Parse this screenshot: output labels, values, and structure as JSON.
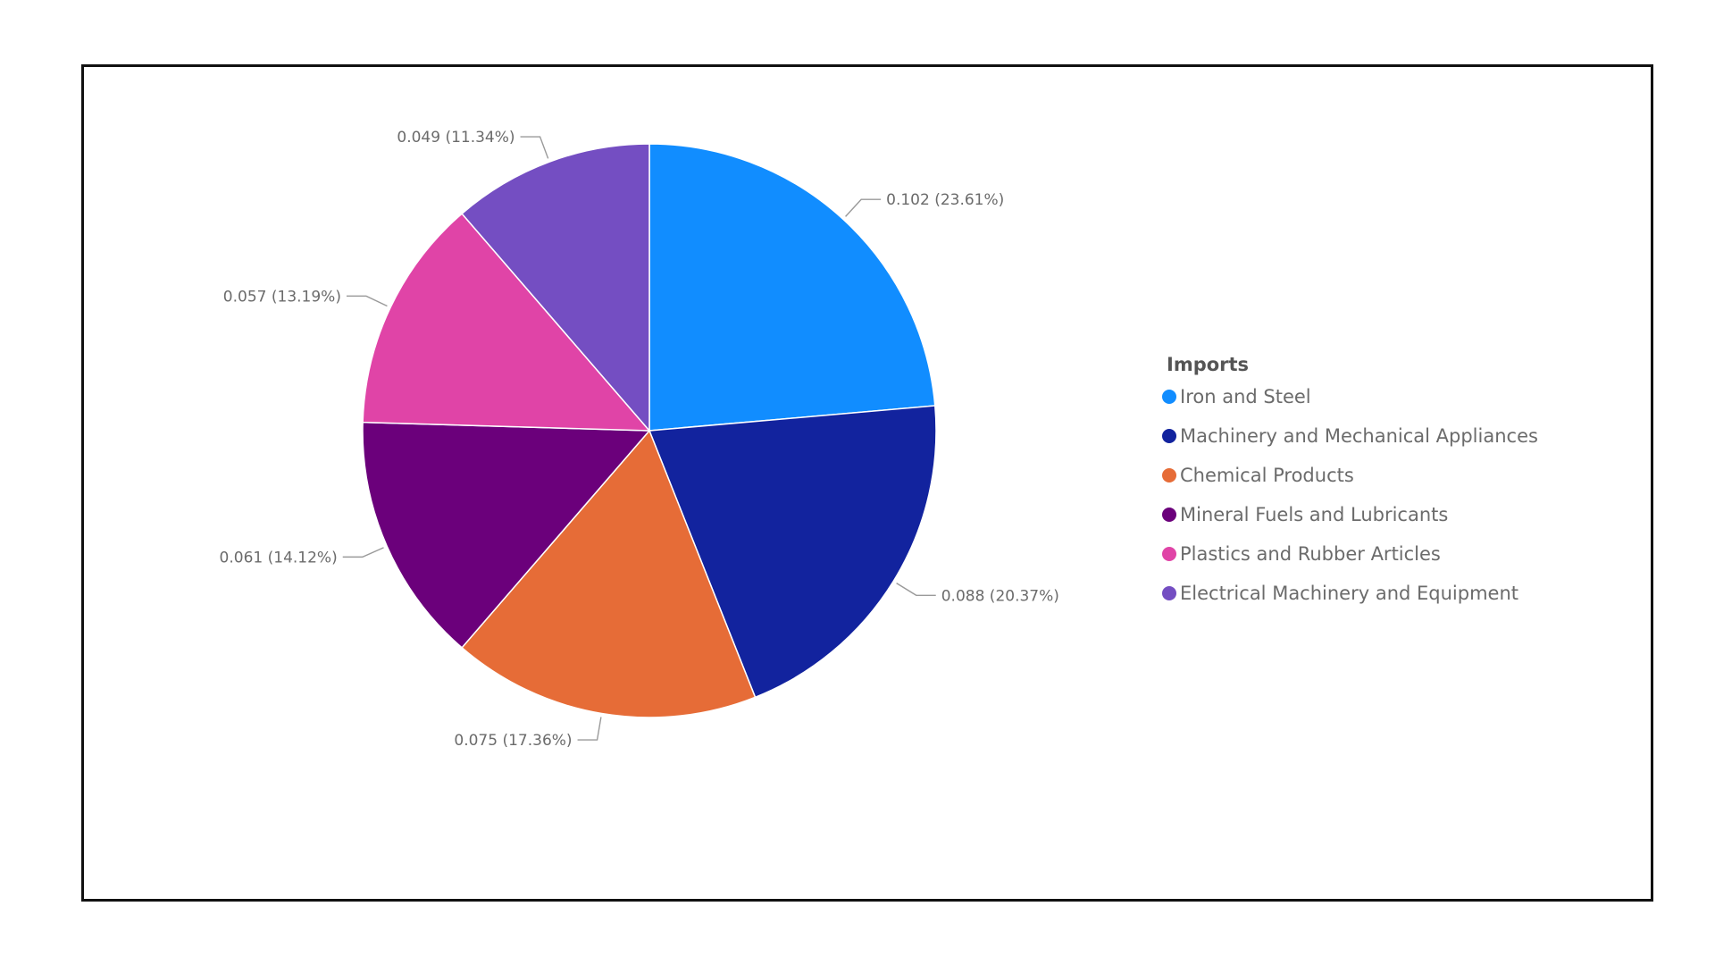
{
  "chart_data": {
    "type": "pie",
    "legend_title": "Imports",
    "legend_position": "right",
    "categories": [
      "Iron and Steel",
      "Machinery and Mechanical Appliances",
      "Chemical Products",
      "Mineral Fuels and Lubricants",
      "Plastics and Rubber Articles",
      "Electrical Machinery and Equipment"
    ],
    "values": [
      0.102,
      0.088,
      0.075,
      0.061,
      0.057,
      0.049
    ],
    "data_labels": [
      "0.102 (23.61%)",
      "0.088 (20.37%)",
      "0.075 (17.36%)",
      "0.061 (14.12%)",
      "0.057 (13.19%)",
      "0.049 (11.34%)"
    ],
    "colors": [
      "#118DFF",
      "#12239E",
      "#E66C37",
      "#6B007B",
      "#E044A7",
      "#744EC2"
    ]
  }
}
